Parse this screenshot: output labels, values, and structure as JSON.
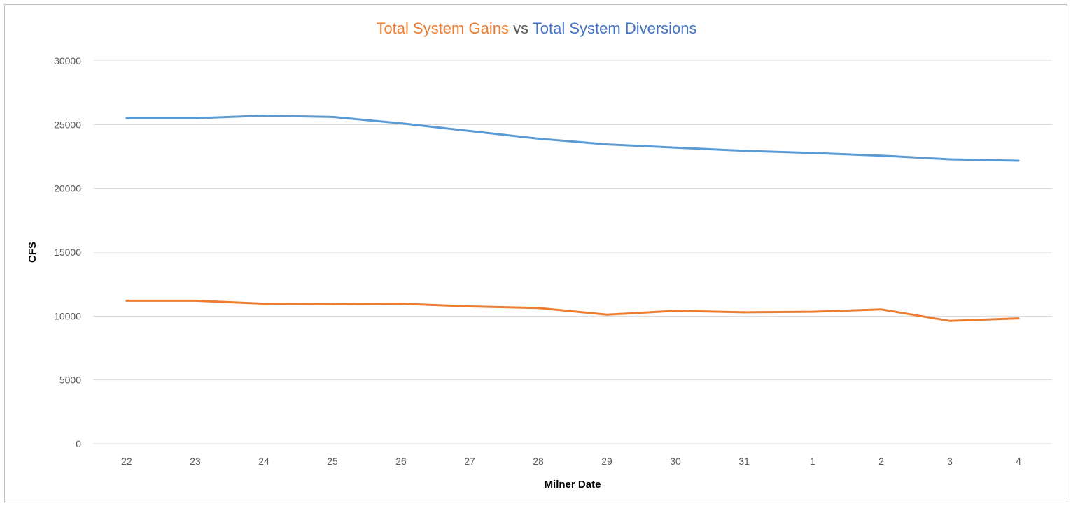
{
  "chart_data": {
    "type": "line",
    "title": {
      "part_a": "Total System Gains",
      "part_b": "vs",
      "part_c": "Total System Diversions"
    },
    "xlabel": "Milner Date",
    "ylabel": "CFS",
    "categories": [
      "22",
      "23",
      "24",
      "25",
      "26",
      "27",
      "28",
      "29",
      "30",
      "31",
      "1",
      "2",
      "3",
      "4"
    ],
    "ylim": [
      0,
      30000
    ],
    "yticks": [
      "0",
      "5000",
      "10000",
      "15000",
      "20000",
      "25000",
      "30000"
    ],
    "grid": true,
    "legend": "none",
    "series": [
      {
        "name": "Total System Diversions",
        "color": "#5B9BD5",
        "values": [
          25500,
          25500,
          25700,
          25600,
          25100,
          24500,
          23900,
          23450,
          23200,
          22950,
          22780,
          22570,
          22280,
          22170
        ]
      },
      {
        "name": "Total System Gains",
        "color": "#ED7D31",
        "values": [
          11200,
          11200,
          10970,
          10930,
          10970,
          10760,
          10630,
          10110,
          10410,
          10300,
          10340,
          10520,
          9620,
          9820
        ]
      }
    ]
  }
}
